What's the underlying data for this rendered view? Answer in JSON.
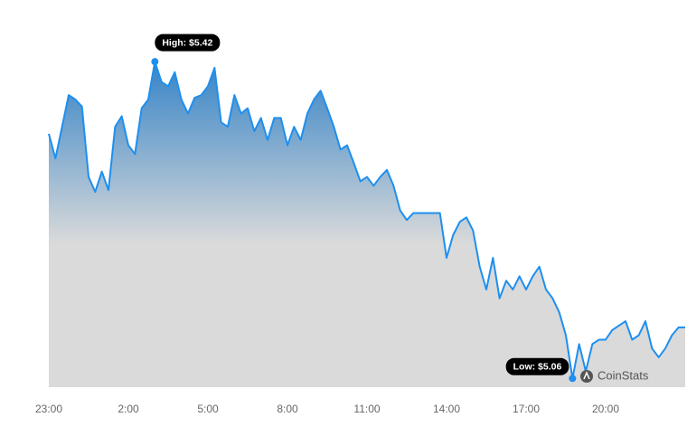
{
  "chart_data": {
    "type": "area",
    "line_color": "#1e8fef",
    "fill_top_color": "#2f80c6",
    "fill_bottom_color": "#dadada",
    "categories": [
      "23:00",
      null,
      null,
      null,
      null,
      null,
      null,
      null,
      null,
      null,
      null,
      null,
      "2:00",
      null,
      null,
      null,
      null,
      null,
      null,
      null,
      null,
      null,
      null,
      null,
      "5:00",
      null,
      null,
      null,
      null,
      null,
      null,
      null,
      null,
      null,
      null,
      null,
      "8:00",
      null,
      null,
      null,
      null,
      null,
      null,
      null,
      null,
      null,
      null,
      null,
      "11:00",
      null,
      null,
      null,
      null,
      null,
      null,
      null,
      null,
      null,
      null,
      null,
      "14:00",
      null,
      null,
      null,
      null,
      null,
      null,
      null,
      null,
      null,
      null,
      null,
      "17:00",
      null,
      null,
      null,
      null,
      null,
      null,
      null,
      null,
      null,
      null,
      null,
      "20:00",
      null,
      null,
      null,
      null,
      null,
      null,
      null,
      null,
      null,
      null,
      null,
      null
    ],
    "series": [
      {
        "values": [
          5.338,
          5.31,
          5.346,
          5.382,
          5.377,
          5.369,
          5.289,
          5.272,
          5.295,
          5.274,
          5.346,
          5.358,
          5.325,
          5.315,
          5.367,
          5.377,
          5.42,
          5.397,
          5.392,
          5.408,
          5.377,
          5.361,
          5.379,
          5.382,
          5.392,
          5.413,
          5.351,
          5.346,
          5.382,
          5.361,
          5.367,
          5.341,
          5.356,
          5.331,
          5.356,
          5.356,
          5.325,
          5.346,
          5.331,
          5.361,
          5.377,
          5.387,
          5.367,
          5.346,
          5.32,
          5.325,
          5.305,
          5.284,
          5.289,
          5.279,
          5.289,
          5.297,
          5.279,
          5.251,
          5.24,
          5.248,
          5.248,
          5.248,
          5.248,
          5.248,
          5.197,
          5.223,
          5.238,
          5.243,
          5.228,
          5.187,
          5.161,
          5.197,
          5.151,
          5.171,
          5.161,
          5.176,
          5.161,
          5.176,
          5.187,
          5.161,
          5.151,
          5.135,
          5.109,
          5.06,
          5.099,
          5.068,
          5.099,
          5.104,
          5.104,
          5.115,
          5.12,
          5.125,
          5.104,
          5.109,
          5.125,
          5.094,
          5.084,
          5.094,
          5.109,
          5.118,
          5.118
        ]
      }
    ],
    "ylim": [
      5.05,
      5.45
    ],
    "annotations": [
      {
        "text": "High: $5.42"
      },
      {
        "text": "Low: $5.06"
      }
    ],
    "watermark": "CoinStats"
  }
}
